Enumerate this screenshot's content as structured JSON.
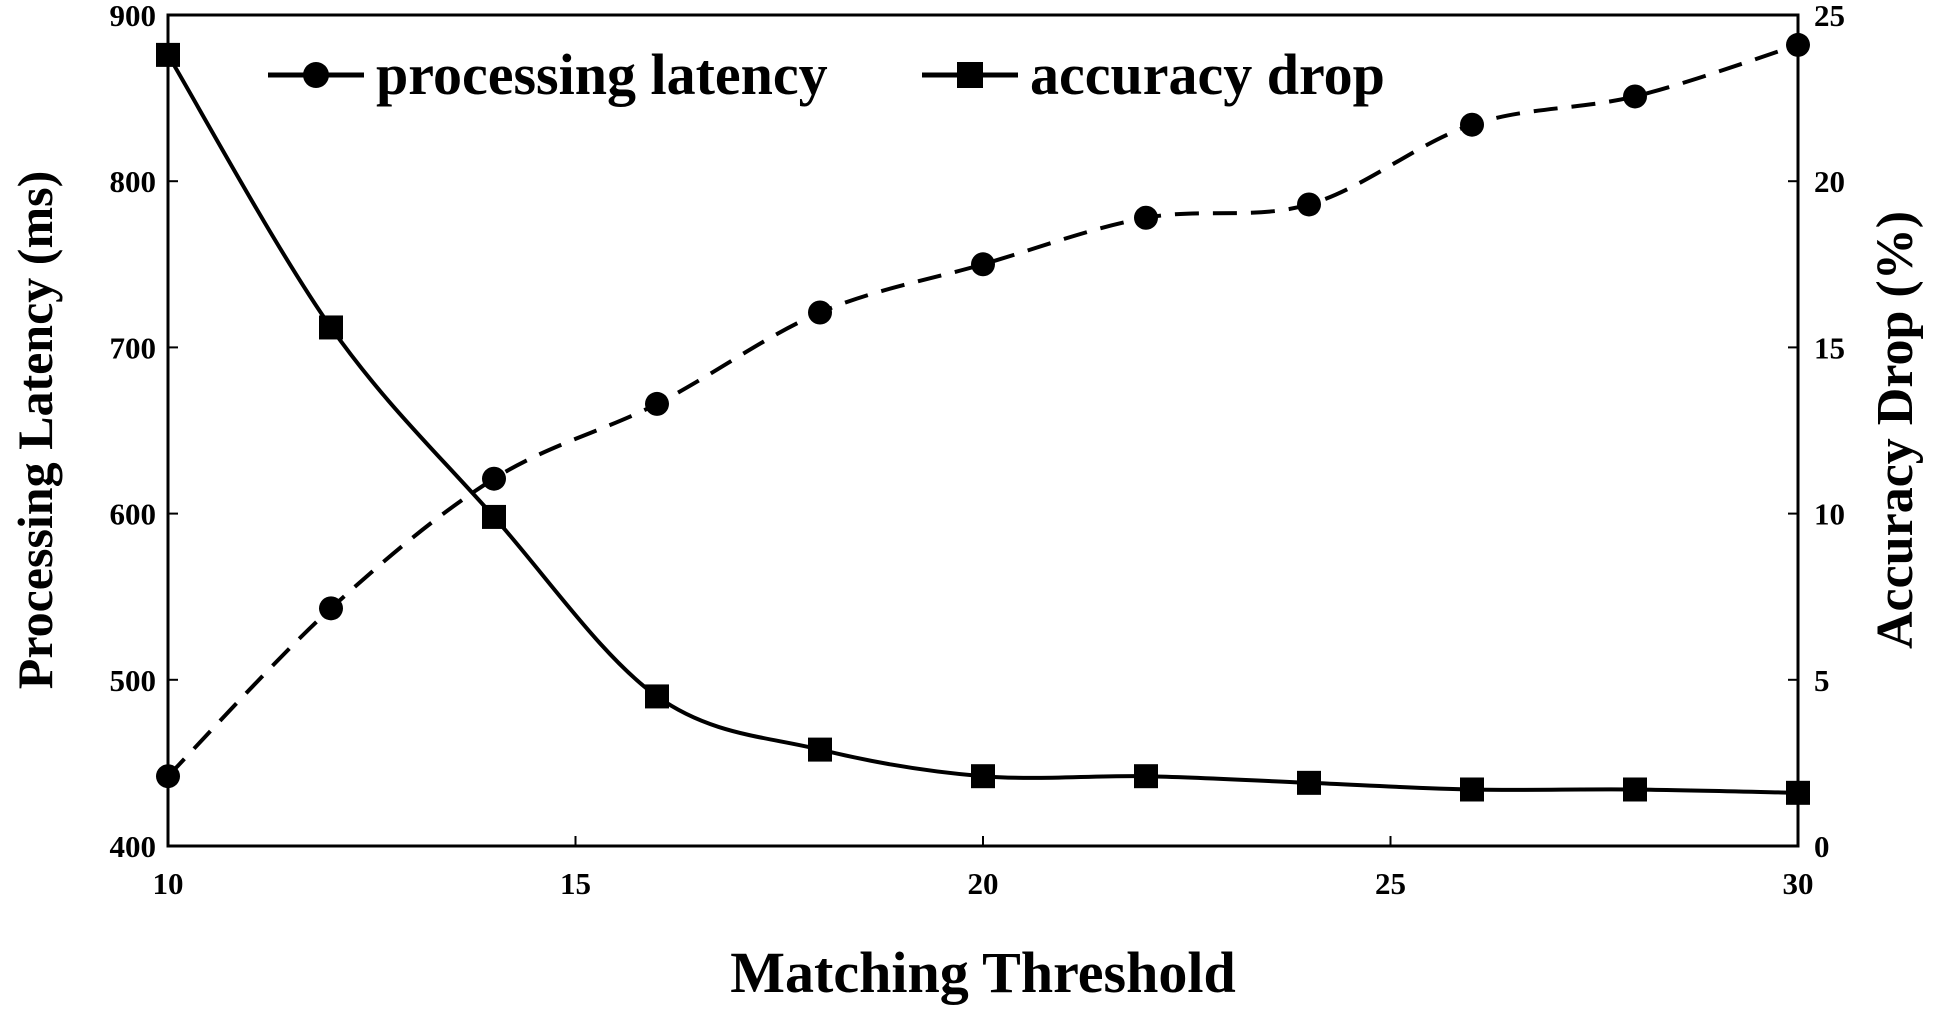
{
  "chart_data": {
    "type": "line",
    "xlabel": "Matching Threshold",
    "ylabel": "Processing Latency (ms)",
    "y2label": "Accuracy Drop (%)",
    "xlim": [
      10,
      30
    ],
    "ylim": [
      400,
      900
    ],
    "y2lim": [
      0,
      25
    ],
    "xticks": [
      10,
      15,
      20,
      25,
      30
    ],
    "yticks": [
      400,
      500,
      600,
      700,
      800,
      900
    ],
    "y2ticks": [
      0,
      5,
      10,
      15,
      20,
      25
    ],
    "x": [
      10,
      12,
      14,
      16,
      18,
      20,
      22,
      24,
      26,
      28,
      30
    ],
    "legend_position": "top",
    "series": [
      {
        "name": "processing latency",
        "axis": "left",
        "marker": "circle",
        "line_style": "dashed",
        "values": [
          442,
          543,
          621,
          666,
          721,
          750,
          778,
          786,
          834,
          851,
          882
        ]
      },
      {
        "name": "accuracy drop",
        "axis": "right",
        "marker": "square",
        "line_style": "solid",
        "values": [
          23.8,
          15.6,
          9.9,
          4.5,
          2.9,
          2.1,
          2.1,
          1.9,
          1.7,
          1.7,
          1.6
        ]
      }
    ],
    "colors": {
      "line": "#000000",
      "background": "#ffffff"
    }
  }
}
